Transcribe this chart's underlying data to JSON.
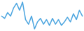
{
  "values": [
    3.0,
    2.0,
    4.5,
    3.0,
    6.5,
    8.5,
    5.5,
    9.0,
    1.5,
    -0.5,
    3.0,
    -2.5,
    0.5,
    2.0,
    -0.5,
    1.5,
    -1.0,
    2.0,
    -0.5,
    1.5,
    -1.0,
    0.5,
    2.5,
    0.5,
    4.0,
    1.5,
    5.5,
    3.0
  ],
  "line_color": "#4da6e0",
  "background_color": "#ffffff",
  "linewidth": 1.1
}
